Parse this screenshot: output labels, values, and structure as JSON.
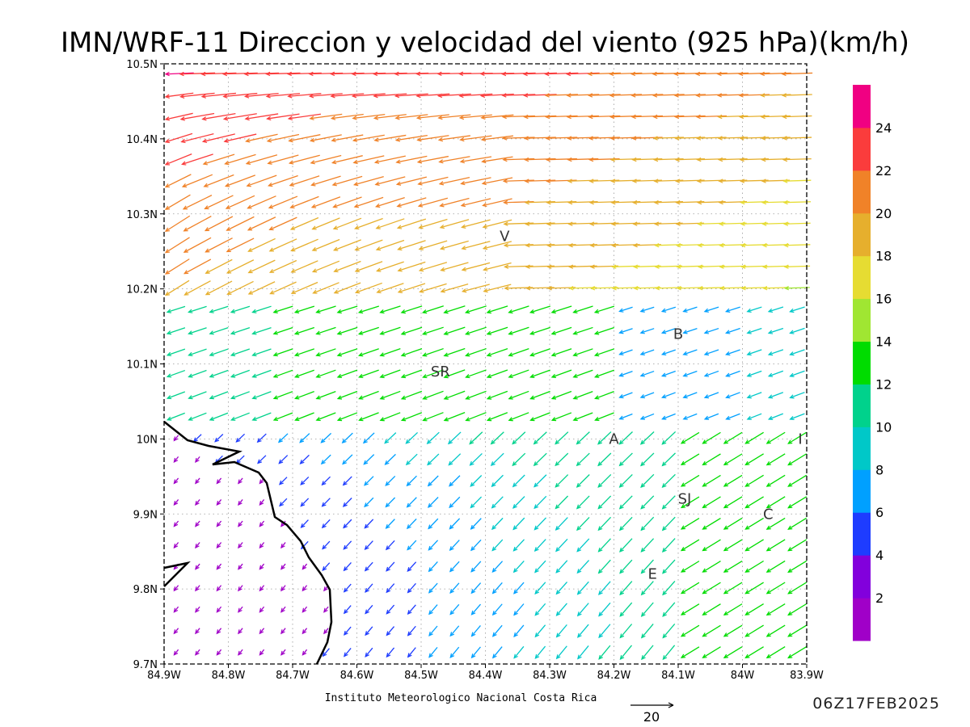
{
  "title": "IMN/WRF-11 Direccion y velocidad del viento (925 hPa)(km/h)",
  "credit": "Instituto Meteorologico Nacional Costa Rica",
  "timestamp": "06Z17FEB2025",
  "reference_vector_label": "20",
  "chart_data": {
    "type": "vector-field",
    "x_ticks": [
      "84.9W",
      "84.8W",
      "84.7W",
      "84.6W",
      "84.5W",
      "84.4W",
      "84.3W",
      "84.2W",
      "84.1W",
      "84W",
      "83.9W"
    ],
    "y_ticks": [
      "9.7N",
      "9.8N",
      "9.9N",
      "10N",
      "10.1N",
      "10.2N",
      "10.3N",
      "10.4N",
      "10.5N"
    ],
    "lon_range": [
      -84.9,
      -83.9
    ],
    "lat_range": [
      9.7,
      10.5
    ],
    "grid": true,
    "colorbar": {
      "labels": [
        "2",
        "4",
        "6",
        "8",
        "10",
        "12",
        "14",
        "16",
        "18",
        "20",
        "22",
        "24"
      ],
      "colors": [
        "#a000c8",
        "#8200dc",
        "#1e3cff",
        "#00a0ff",
        "#00c8c8",
        "#00d28c",
        "#00dc00",
        "#a0e632",
        "#e6dc32",
        "#e6af2d",
        "#f08228",
        "#fa3c3c",
        "#f00082"
      ]
    },
    "cities": [
      {
        "label": "V",
        "lon": -84.37,
        "lat": 10.27
      },
      {
        "label": "B",
        "lon": -84.1,
        "lat": 10.14
      },
      {
        "label": "SR",
        "lon": -84.47,
        "lat": 10.09
      },
      {
        "label": "A",
        "lon": -84.2,
        "lat": 10.0
      },
      {
        "label": "I",
        "lon": -83.91,
        "lat": 10.0
      },
      {
        "label": "SJ",
        "lon": -84.09,
        "lat": 9.92
      },
      {
        "label": "C",
        "lon": -83.96,
        "lat": 9.9
      },
      {
        "label": "E",
        "lon": -84.14,
        "lat": 9.82
      }
    ]
  }
}
